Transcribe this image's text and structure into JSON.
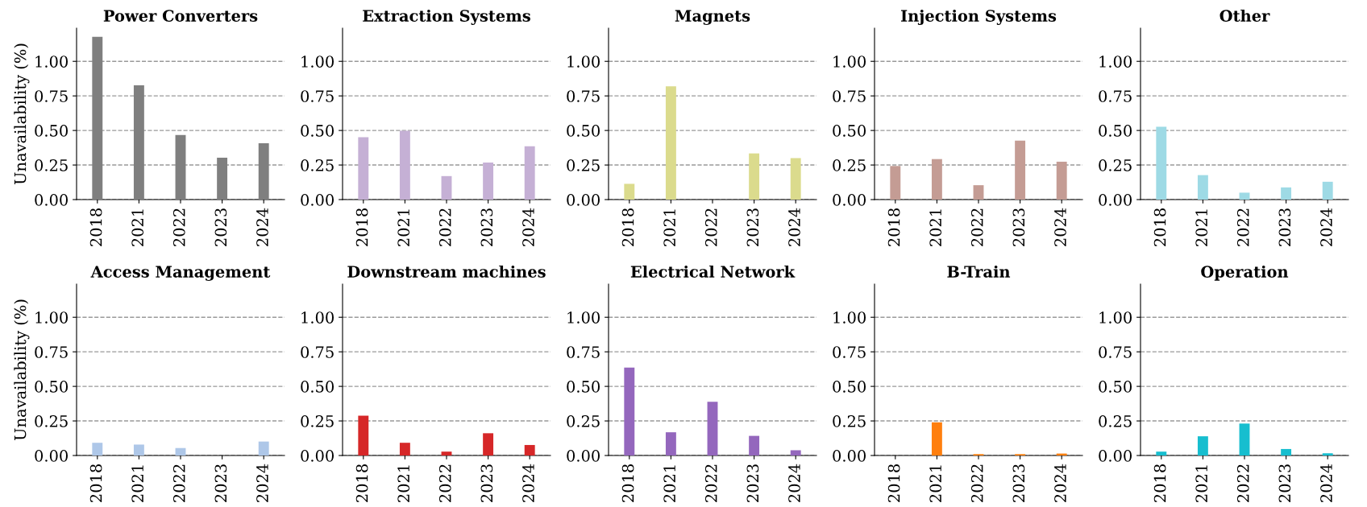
{
  "chart_data": [
    {
      "type": "bar",
      "title": "Power Converters",
      "ylabel": "Unavailability (%)",
      "categories": [
        "2018",
        "2021",
        "2022",
        "2023",
        "2024"
      ],
      "series": [
        {
          "color": "#7f7f7f",
          "values": [
            1.177,
            0.826,
            0.467,
            0.303,
            0.407
          ]
        }
      ],
      "ylim": [
        0,
        1.24
      ],
      "yticks": [
        {
          "value": 0,
          "label": "0.00"
        },
        {
          "value": 0.25,
          "label": "0.25"
        },
        {
          "value": 0.5,
          "label": "0.50"
        },
        {
          "value": 0.75,
          "label": "0.75"
        },
        {
          "value": 1.0,
          "label": "1.00"
        }
      ],
      "grid": "y"
    },
    {
      "type": "bar",
      "title": "Extraction Systems",
      "categories": [
        "2018",
        "2021",
        "2022",
        "2023",
        "2024"
      ],
      "series": [
        {
          "color": "#c5b0d5",
          "values": [
            0.451,
            0.498,
            0.17,
            0.268,
            0.385
          ]
        }
      ],
      "ylim": [
        0,
        1.24
      ],
      "yticks": [
        {
          "value": 0,
          "label": "0.00"
        },
        {
          "value": 0.25,
          "label": "0.25"
        },
        {
          "value": 0.5,
          "label": "0.50"
        },
        {
          "value": 0.75,
          "label": "0.75"
        },
        {
          "value": 1.0,
          "label": "1.00"
        }
      ],
      "grid": "y"
    },
    {
      "type": "bar",
      "title": "Magnets",
      "categories": [
        "2018",
        "2021",
        "2022",
        "2023",
        "2024"
      ],
      "series": [
        {
          "color": "#dbdb8d",
          "values": [
            0.114,
            0.82,
            0,
            0.334,
            0.3
          ]
        }
      ],
      "ylim": [
        0,
        1.24
      ],
      "yticks": [
        {
          "value": 0,
          "label": "0.00"
        },
        {
          "value": 0.25,
          "label": "0.25"
        },
        {
          "value": 0.5,
          "label": "0.50"
        },
        {
          "value": 0.75,
          "label": "0.75"
        },
        {
          "value": 1.0,
          "label": "1.00"
        }
      ],
      "grid": "y"
    },
    {
      "type": "bar",
      "title": "Injection Systems",
      "categories": [
        "2018",
        "2021",
        "2022",
        "2023",
        "2024"
      ],
      "series": [
        {
          "color": "#c49c94",
          "values": [
            0.243,
            0.293,
            0.104,
            0.426,
            0.274
          ]
        }
      ],
      "ylim": [
        0,
        1.24
      ],
      "yticks": [
        {
          "value": 0,
          "label": "0.00"
        },
        {
          "value": 0.25,
          "label": "0.25"
        },
        {
          "value": 0.5,
          "label": "0.50"
        },
        {
          "value": 0.75,
          "label": "0.75"
        },
        {
          "value": 1.0,
          "label": "1.00"
        }
      ],
      "grid": "y"
    },
    {
      "type": "bar",
      "title": "Other",
      "categories": [
        "2018",
        "2021",
        "2022",
        "2023",
        "2024"
      ],
      "series": [
        {
          "color": "#9edae5",
          "values": [
            0.527,
            0.177,
            0.05,
            0.088,
            0.129
          ]
        }
      ],
      "ylim": [
        0,
        1.24
      ],
      "yticks": [
        {
          "value": 0,
          "label": "0.00"
        },
        {
          "value": 0.25,
          "label": "0.25"
        },
        {
          "value": 0.5,
          "label": "0.50"
        },
        {
          "value": 0.75,
          "label": "0.75"
        },
        {
          "value": 1.0,
          "label": "1.00"
        }
      ],
      "grid": "y"
    },
    {
      "type": "bar",
      "title": "Access Management",
      "ylabel": "Unavailability (%)",
      "categories": [
        "2018",
        "2021",
        "2022",
        "2023",
        "2024"
      ],
      "series": [
        {
          "color": "#aec7e8",
          "values": [
            0.092,
            0.079,
            0.054,
            0,
            0.101
          ]
        }
      ],
      "ylim": [
        0,
        1.24
      ],
      "yticks": [
        {
          "value": 0,
          "label": "0.00"
        },
        {
          "value": 0.25,
          "label": "0.25"
        },
        {
          "value": 0.5,
          "label": "0.50"
        },
        {
          "value": 0.75,
          "label": "0.75"
        },
        {
          "value": 1.0,
          "label": "1.00"
        }
      ],
      "grid": "y"
    },
    {
      "type": "bar",
      "title": "Downstream machines",
      "categories": [
        "2018",
        "2021",
        "2022",
        "2023",
        "2024"
      ],
      "series": [
        {
          "color": "#d62728",
          "values": [
            0.288,
            0.092,
            0.028,
            0.161,
            0.076
          ]
        }
      ],
      "ylim": [
        0,
        1.24
      ],
      "yticks": [
        {
          "value": 0,
          "label": "0.00"
        },
        {
          "value": 0.25,
          "label": "0.25"
        },
        {
          "value": 0.5,
          "label": "0.50"
        },
        {
          "value": 0.75,
          "label": "0.75"
        },
        {
          "value": 1.0,
          "label": "1.00"
        }
      ],
      "grid": "y"
    },
    {
      "type": "bar",
      "title": "Electrical Network",
      "categories": [
        "2018",
        "2021",
        "2022",
        "2023",
        "2024"
      ],
      "series": [
        {
          "color": "#9467bd",
          "values": [
            0.636,
            0.168,
            0.389,
            0.142,
            0.038
          ]
        }
      ],
      "ylim": [
        0,
        1.24
      ],
      "yticks": [
        {
          "value": 0,
          "label": "0.00"
        },
        {
          "value": 0.25,
          "label": "0.25"
        },
        {
          "value": 0.5,
          "label": "0.50"
        },
        {
          "value": 0.75,
          "label": "0.75"
        },
        {
          "value": 1.0,
          "label": "1.00"
        }
      ],
      "grid": "y"
    },
    {
      "type": "bar",
      "title": "B-Train",
      "categories": [
        "2018",
        "2021",
        "2022",
        "2023",
        "2024"
      ],
      "series": [
        {
          "color": "#ff7f0e",
          "values": [
            0,
            0.24,
            0.01,
            0.01,
            0.014
          ]
        }
      ],
      "ylim": [
        0,
        1.24
      ],
      "yticks": [
        {
          "value": 0,
          "label": "0.00"
        },
        {
          "value": 0.25,
          "label": "0.25"
        },
        {
          "value": 0.5,
          "label": "0.50"
        },
        {
          "value": 0.75,
          "label": "0.75"
        },
        {
          "value": 1.0,
          "label": "1.00"
        }
      ],
      "grid": "y"
    },
    {
      "type": "bar",
      "title": "Operation",
      "categories": [
        "2018",
        "2021",
        "2022",
        "2023",
        "2024"
      ],
      "series": [
        {
          "color": "#17becf",
          "values": [
            0.028,
            0.139,
            0.231,
            0.047,
            0.016
          ]
        }
      ],
      "ylim": [
        0,
        1.24
      ],
      "yticks": [
        {
          "value": 0,
          "label": "0.00"
        },
        {
          "value": 0.25,
          "label": "0.25"
        },
        {
          "value": 0.5,
          "label": "0.50"
        },
        {
          "value": 0.75,
          "label": "0.75"
        },
        {
          "value": 1.0,
          "label": "1.00"
        }
      ],
      "grid": "y"
    }
  ]
}
